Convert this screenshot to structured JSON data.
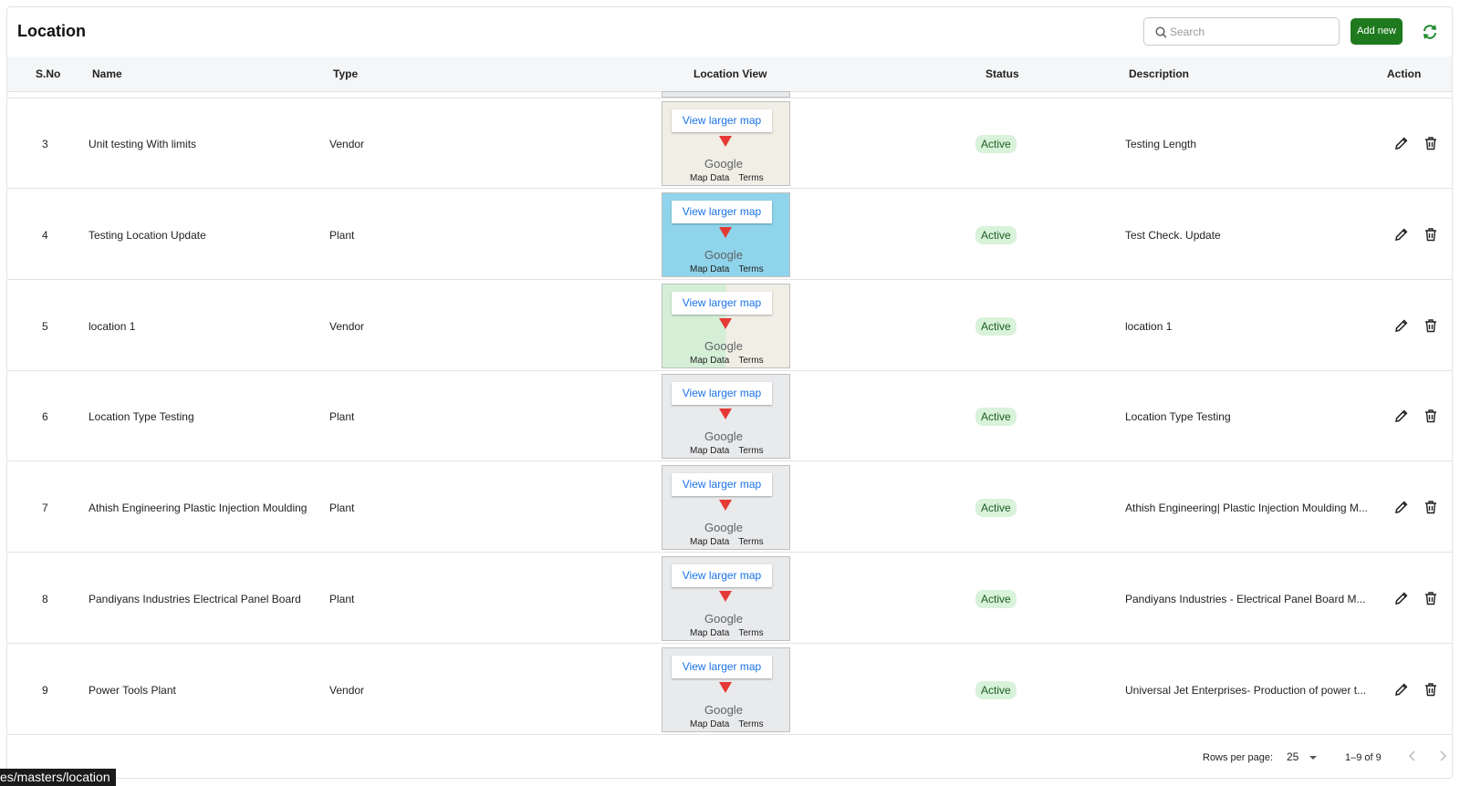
{
  "header": {
    "title": "Location",
    "search_placeholder": "Search",
    "add_button": "Add new"
  },
  "table": {
    "columns": [
      "S.No",
      "Name",
      "Type",
      "Location View",
      "Status",
      "Description",
      "Action"
    ],
    "rows": [
      [
        3,
        "Unit testing With limits",
        "Vendor",
        "Active",
        "Testing Length"
      ],
      [
        4,
        "Testing Location Update",
        "Plant",
        "Active",
        "Test Check. Update"
      ],
      [
        5,
        "location 1",
        "Vendor",
        "Active",
        "location 1"
      ],
      [
        6,
        "Location Type Testing",
        "Plant",
        "Active",
        "Location Type Testing"
      ],
      [
        7,
        "Athish Engineering Plastic Injection Moulding",
        "Plant",
        "Active",
        "Athish Engineering| Plastic Injection Moulding M..."
      ],
      [
        8,
        "Pandiyans Industries Electrical Panel Board",
        "Plant",
        "Active",
        "Pandiyans Industries - Electrical Panel Board M..."
      ],
      [
        9,
        "Power Tools Plant",
        "Vendor",
        "Active",
        "Universal Jet Enterprises- Production of power t..."
      ]
    ]
  },
  "map": {
    "link": "View larger map",
    "logo": "Google",
    "data": "Map Data",
    "terms": "Terms"
  },
  "footer": {
    "rows_per_page_label": "Rows per page:",
    "rows_per_page": 25,
    "range": "1–9 of 9"
  },
  "status_bar": "es/masters/location"
}
